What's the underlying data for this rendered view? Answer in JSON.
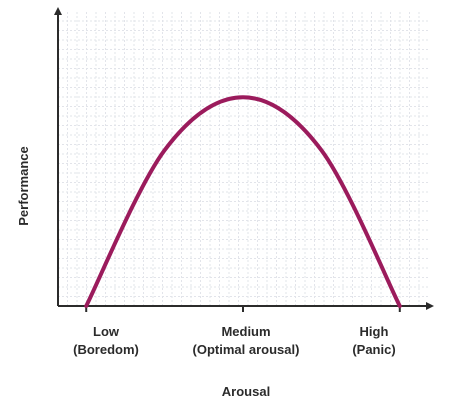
{
  "chart_data": {
    "type": "line",
    "title": "",
    "xlabel": "Arousal",
    "ylabel": "Performance",
    "x_ticks": [
      {
        "line1": "Low",
        "line2": "(Boredom)"
      },
      {
        "line1": "Medium",
        "line2": "(Optimal arousal)"
      },
      {
        "line1": "High",
        "line2": "(Panic)"
      }
    ],
    "x": [
      0,
      0.5,
      1,
      1.5,
      2
    ],
    "series": [
      {
        "values": [
          0,
          0.53,
          0.71,
          0.53,
          0
        ],
        "color": "#9b1b5c"
      }
    ],
    "xlim": [
      -0.18,
      2.18
    ],
    "ylim": [
      0,
      1
    ],
    "grid": true,
    "grid_color": "#e2e4ea"
  }
}
